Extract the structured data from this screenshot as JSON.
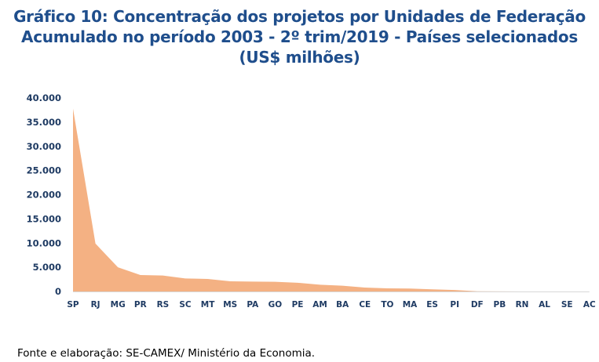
{
  "chart_data": {
    "type": "area",
    "title": "Gráfico 10: Concentração dos projetos por Unidades de Federação",
    "subtitle": "Acumulado no período 2003 - 2º trim/2019 - Países selecionados",
    "unit_line": "(US$ milhões)",
    "xlabel": "",
    "ylabel": "",
    "ylim": [
      0,
      40000
    ],
    "yticks": [
      0,
      5000,
      10000,
      15000,
      20000,
      25000,
      30000,
      35000,
      40000
    ],
    "ytick_labels": [
      "0",
      "5.000",
      "10.000",
      "15.000",
      "20.000",
      "25.000",
      "30.000",
      "35.000",
      "40.000"
    ],
    "grid": false,
    "legend": "none",
    "categories": [
      "SP",
      "RJ",
      "MG",
      "PR",
      "RS",
      "SC",
      "MT",
      "MS",
      "PA",
      "GO",
      "PE",
      "AM",
      "BA",
      "CE",
      "TO",
      "MA",
      "ES",
      "PI",
      "DF",
      "PB",
      "RN",
      "AL",
      "SE",
      "AC"
    ],
    "series": [
      {
        "name": "Concentração dos projetos",
        "color": "#f4b183",
        "values": [
          37800,
          9900,
          5000,
          3400,
          3300,
          2700,
          2600,
          2100,
          2050,
          2000,
          1800,
          1400,
          1200,
          800,
          650,
          600,
          450,
          300,
          50,
          20,
          10,
          10,
          5,
          5
        ]
      }
    ]
  },
  "footer": {
    "source": "Fonte e elaboração: SE-CAMEX/ Ministério da Economia."
  }
}
